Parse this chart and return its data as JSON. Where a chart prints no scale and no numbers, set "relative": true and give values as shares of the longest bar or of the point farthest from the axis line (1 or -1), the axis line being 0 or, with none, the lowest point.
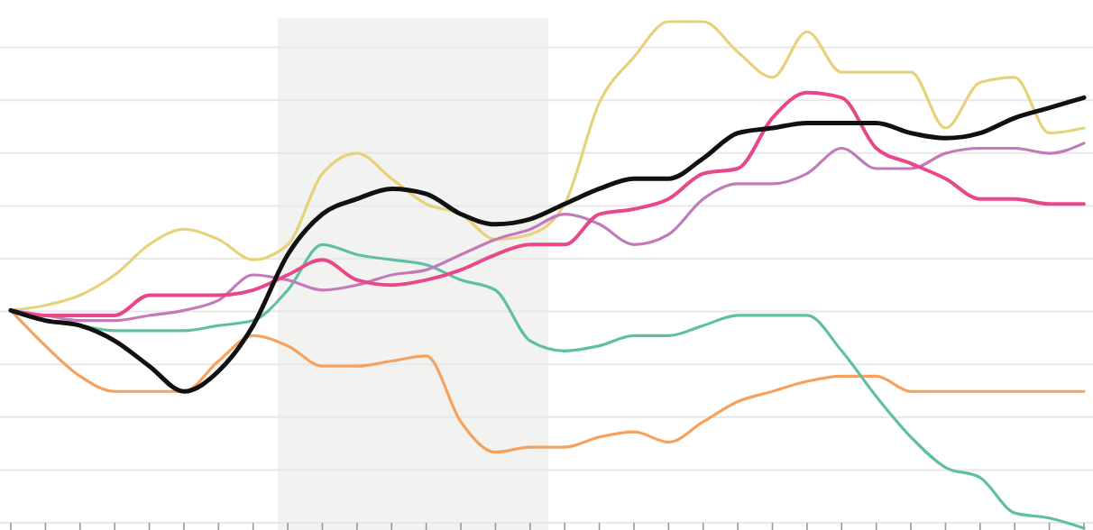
{
  "chart_data": {
    "type": "line",
    "relative": true,
    "grid": "y",
    "categories": [
      null,
      null,
      null,
      null,
      null,
      null,
      null,
      null,
      null,
      null,
      null,
      null,
      null,
      null,
      null,
      null,
      null,
      null,
      null,
      null,
      null,
      null,
      null,
      null,
      null,
      null,
      null,
      null,
      null,
      null,
      null,
      null
    ],
    "series": [
      {
        "color": "#e6d27a",
        "values": [
          0.43,
          0.44,
          0.46,
          0.5,
          0.56,
          0.59,
          0.57,
          0.53,
          0.56,
          0.7,
          0.74,
          0.69,
          0.64,
          0.62,
          0.57,
          0.58,
          0.64,
          0.84,
          0.93,
          1.0,
          1.0,
          0.94,
          0.89,
          0.98,
          0.9,
          0.9,
          0.9,
          0.79,
          0.88,
          0.89,
          0.78,
          0.79
        ]
      },
      {
        "color": "#f4a25e",
        "values": [
          0.43,
          0.36,
          0.3,
          0.27,
          0.27,
          0.27,
          0.33,
          0.38,
          0.36,
          0.32,
          0.32,
          0.33,
          0.34,
          0.21,
          0.15,
          0.16,
          0.16,
          0.18,
          0.19,
          0.17,
          0.21,
          0.25,
          0.27,
          0.29,
          0.3,
          0.3,
          0.27,
          0.27,
          0.27,
          0.27,
          0.27,
          0.27
        ]
      },
      {
        "color": "#5fbfa5",
        "values": [
          0.43,
          0.41,
          0.4,
          0.39,
          0.39,
          0.39,
          0.4,
          0.41,
          0.47,
          0.56,
          0.54,
          0.53,
          0.52,
          0.49,
          0.47,
          0.37,
          0.35,
          0.36,
          0.38,
          0.38,
          0.4,
          0.42,
          0.42,
          0.42,
          0.35,
          0.26,
          0.18,
          0.12,
          0.1,
          0.03,
          0.02,
          0
        ]
      },
      {
        "color": "#c27ab8",
        "values": [
          0.43,
          0.42,
          0.41,
          0.41,
          0.42,
          0.43,
          0.45,
          0.5,
          0.49,
          0.47,
          0.48,
          0.5,
          0.51,
          0.54,
          0.57,
          0.59,
          0.62,
          0.6,
          0.56,
          0.58,
          0.65,
          0.68,
          0.68,
          0.7,
          0.75,
          0.71,
          0.71,
          0.74,
          0.75,
          0.75,
          0.74,
          0.76
        ]
      },
      {
        "color": "#e8488a",
        "values": [
          0.43,
          0.42,
          0.42,
          0.42,
          0.46,
          0.46,
          0.46,
          0.47,
          0.5,
          0.53,
          0.49,
          0.48,
          0.49,
          0.51,
          0.54,
          0.56,
          0.56,
          0.62,
          0.63,
          0.65,
          0.7,
          0.71,
          0.81,
          0.86,
          0.85,
          0.75,
          0.72,
          0.69,
          0.65,
          0.65,
          0.64,
          0.64
        ]
      },
      {
        "color": "#111111",
        "values": [
          0.43,
          0.41,
          0.4,
          0.37,
          0.32,
          0.27,
          0.31,
          0.4,
          0.54,
          0.62,
          0.65,
          0.67,
          0.66,
          0.62,
          0.6,
          0.61,
          0.64,
          0.67,
          0.69,
          0.69,
          0.73,
          0.78,
          0.79,
          0.8,
          0.8,
          0.8,
          0.78,
          0.77,
          0.78,
          0.81,
          0.83,
          0.85
        ]
      }
    ]
  }
}
